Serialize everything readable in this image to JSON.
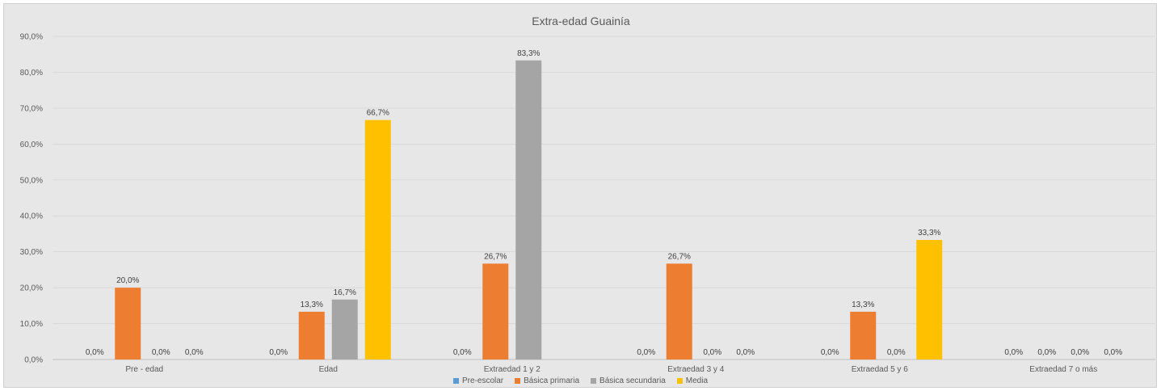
{
  "chart_data": {
    "type": "bar",
    "title": "Extra-edad Guainía",
    "xlabel": "",
    "ylabel": "",
    "ylim": [
      0,
      90
    ],
    "yticks": [
      "0,0%",
      "10,0%",
      "20,0%",
      "30,0%",
      "40,0%",
      "50,0%",
      "60,0%",
      "70,0%",
      "80,0%",
      "90,0%"
    ],
    "categories": [
      "Pre - edad",
      "Edad",
      "Extraedad 1 y 2",
      "Extraedad 3 y 4",
      "Extraedad 5 y 6",
      "Extraedad 7 o más"
    ],
    "grid": true,
    "legend_position": "bottom",
    "series": [
      {
        "name": "Pre-escolar",
        "color": "#5b9bd5",
        "values": [
          0,
          0,
          0,
          0,
          0,
          0
        ],
        "labels": [
          "0,0%",
          "0,0%",
          "0,0%",
          "0,0%",
          "0,0%",
          "0,0%"
        ]
      },
      {
        "name": "Básica primaria",
        "color": "#ed7d31",
        "values": [
          20.0,
          13.3,
          26.7,
          26.7,
          13.3,
          0
        ],
        "labels": [
          "20,0%",
          "13,3%",
          "26,7%",
          "26,7%",
          "13,3%",
          "0,0%"
        ]
      },
      {
        "name": "Básica secundaria",
        "color": "#a5a5a5",
        "values": [
          0,
          16.7,
          83.3,
          0,
          0,
          0
        ],
        "labels": [
          "0,0%",
          "16,7%",
          "83,3%",
          "0,0%",
          "0,0%",
          "0,0%"
        ]
      },
      {
        "name": "Media",
        "color": "#ffc000",
        "values": [
          0,
          66.7,
          0,
          0,
          33.3,
          0
        ],
        "labels": [
          "0,0%",
          "66,7%",
          null,
          "0,0%",
          "33,3%",
          "0,0%"
        ]
      }
    ]
  }
}
